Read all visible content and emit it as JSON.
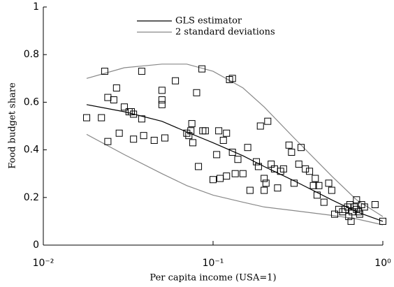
{
  "chart_data": {
    "type": "scatter",
    "xlabel": "Per capita income (USA=1)",
    "ylabel": "Food budget share",
    "xscale": "log",
    "xlim": [
      0.01,
      1
    ],
    "ylim": [
      0,
      1
    ],
    "xticks": [
      {
        "value": 0.01,
        "label": "10⁻²"
      },
      {
        "value": 0.1,
        "label": "10⁻¹"
      },
      {
        "value": 1,
        "label": "10⁰"
      }
    ],
    "yticks": [
      0,
      0.2,
      0.4,
      0.6,
      0.8,
      1
    ],
    "legend": "top",
    "points": {
      "color": "#000000",
      "x": [
        0.018,
        0.022,
        0.023,
        0.024,
        0.024,
        0.026,
        0.027,
        0.028,
        0.03,
        0.032,
        0.033,
        0.034,
        0.034,
        0.038,
        0.038,
        0.039,
        0.045,
        0.05,
        0.05,
        0.05,
        0.052,
        0.06,
        0.07,
        0.072,
        0.074,
        0.075,
        0.076,
        0.08,
        0.082,
        0.086,
        0.087,
        0.09,
        0.1,
        0.105,
        0.108,
        0.11,
        0.115,
        0.12,
        0.12,
        0.125,
        0.13,
        0.13,
        0.135,
        0.14,
        0.15,
        0.16,
        0.165,
        0.18,
        0.185,
        0.19,
        0.2,
        0.2,
        0.205,
        0.21,
        0.22,
        0.23,
        0.24,
        0.25,
        0.26,
        0.28,
        0.29,
        0.3,
        0.32,
        0.33,
        0.35,
        0.37,
        0.39,
        0.4,
        0.41,
        0.42,
        0.45,
        0.48,
        0.5,
        0.52,
        0.55,
        0.58,
        0.6,
        0.62,
        0.63,
        0.64,
        0.66,
        0.68,
        0.7,
        0.7,
        0.72,
        0.73,
        0.75,
        0.78,
        0.9,
        1.0,
        0.65
      ],
      "y": [
        0.535,
        0.535,
        0.73,
        0.62,
        0.435,
        0.61,
        0.66,
        0.47,
        0.58,
        0.56,
        0.56,
        0.55,
        0.445,
        0.53,
        0.73,
        0.46,
        0.44,
        0.65,
        0.61,
        0.59,
        0.45,
        0.69,
        0.47,
        0.46,
        0.48,
        0.51,
        0.43,
        0.64,
        0.33,
        0.74,
        0.48,
        0.48,
        0.275,
        0.38,
        0.48,
        0.28,
        0.44,
        0.47,
        0.29,
        0.695,
        0.7,
        0.39,
        0.3,
        0.36,
        0.3,
        0.41,
        0.23,
        0.35,
        0.33,
        0.5,
        0.28,
        0.23,
        0.26,
        0.52,
        0.34,
        0.32,
        0.24,
        0.31,
        0.32,
        0.42,
        0.39,
        0.26,
        0.34,
        0.41,
        0.32,
        0.31,
        0.25,
        0.28,
        0.21,
        0.25,
        0.18,
        0.26,
        0.23,
        0.13,
        0.15,
        0.14,
        0.15,
        0.16,
        0.12,
        0.17,
        0.14,
        0.16,
        0.19,
        0.15,
        0.14,
        0.13,
        0.17,
        0.16,
        0.17,
        0.1,
        0.1
      ]
    },
    "series": [
      {
        "name": "GLS estimator",
        "color": "#000000",
        "x": [
          0.018,
          0.03,
          0.05,
          0.07,
          0.1,
          0.15,
          0.2,
          0.3,
          0.5,
          0.7,
          1.0
        ],
        "values": [
          0.59,
          0.56,
          0.52,
          0.475,
          0.43,
          0.375,
          0.33,
          0.27,
          0.19,
          0.14,
          0.1
        ]
      },
      {
        "name": "2 standard deviations",
        "color": "#888888",
        "x": [
          0.018,
          0.03,
          0.05,
          0.07,
          0.1,
          0.15,
          0.2,
          0.3,
          0.5,
          0.7,
          1.0
        ],
        "upper": [
          0.7,
          0.745,
          0.76,
          0.76,
          0.73,
          0.66,
          0.58,
          0.45,
          0.29,
          0.19,
          0.12
        ],
        "lower": [
          0.465,
          0.38,
          0.3,
          0.25,
          0.21,
          0.18,
          0.16,
          0.145,
          0.125,
          0.11,
          0.085
        ]
      }
    ]
  }
}
